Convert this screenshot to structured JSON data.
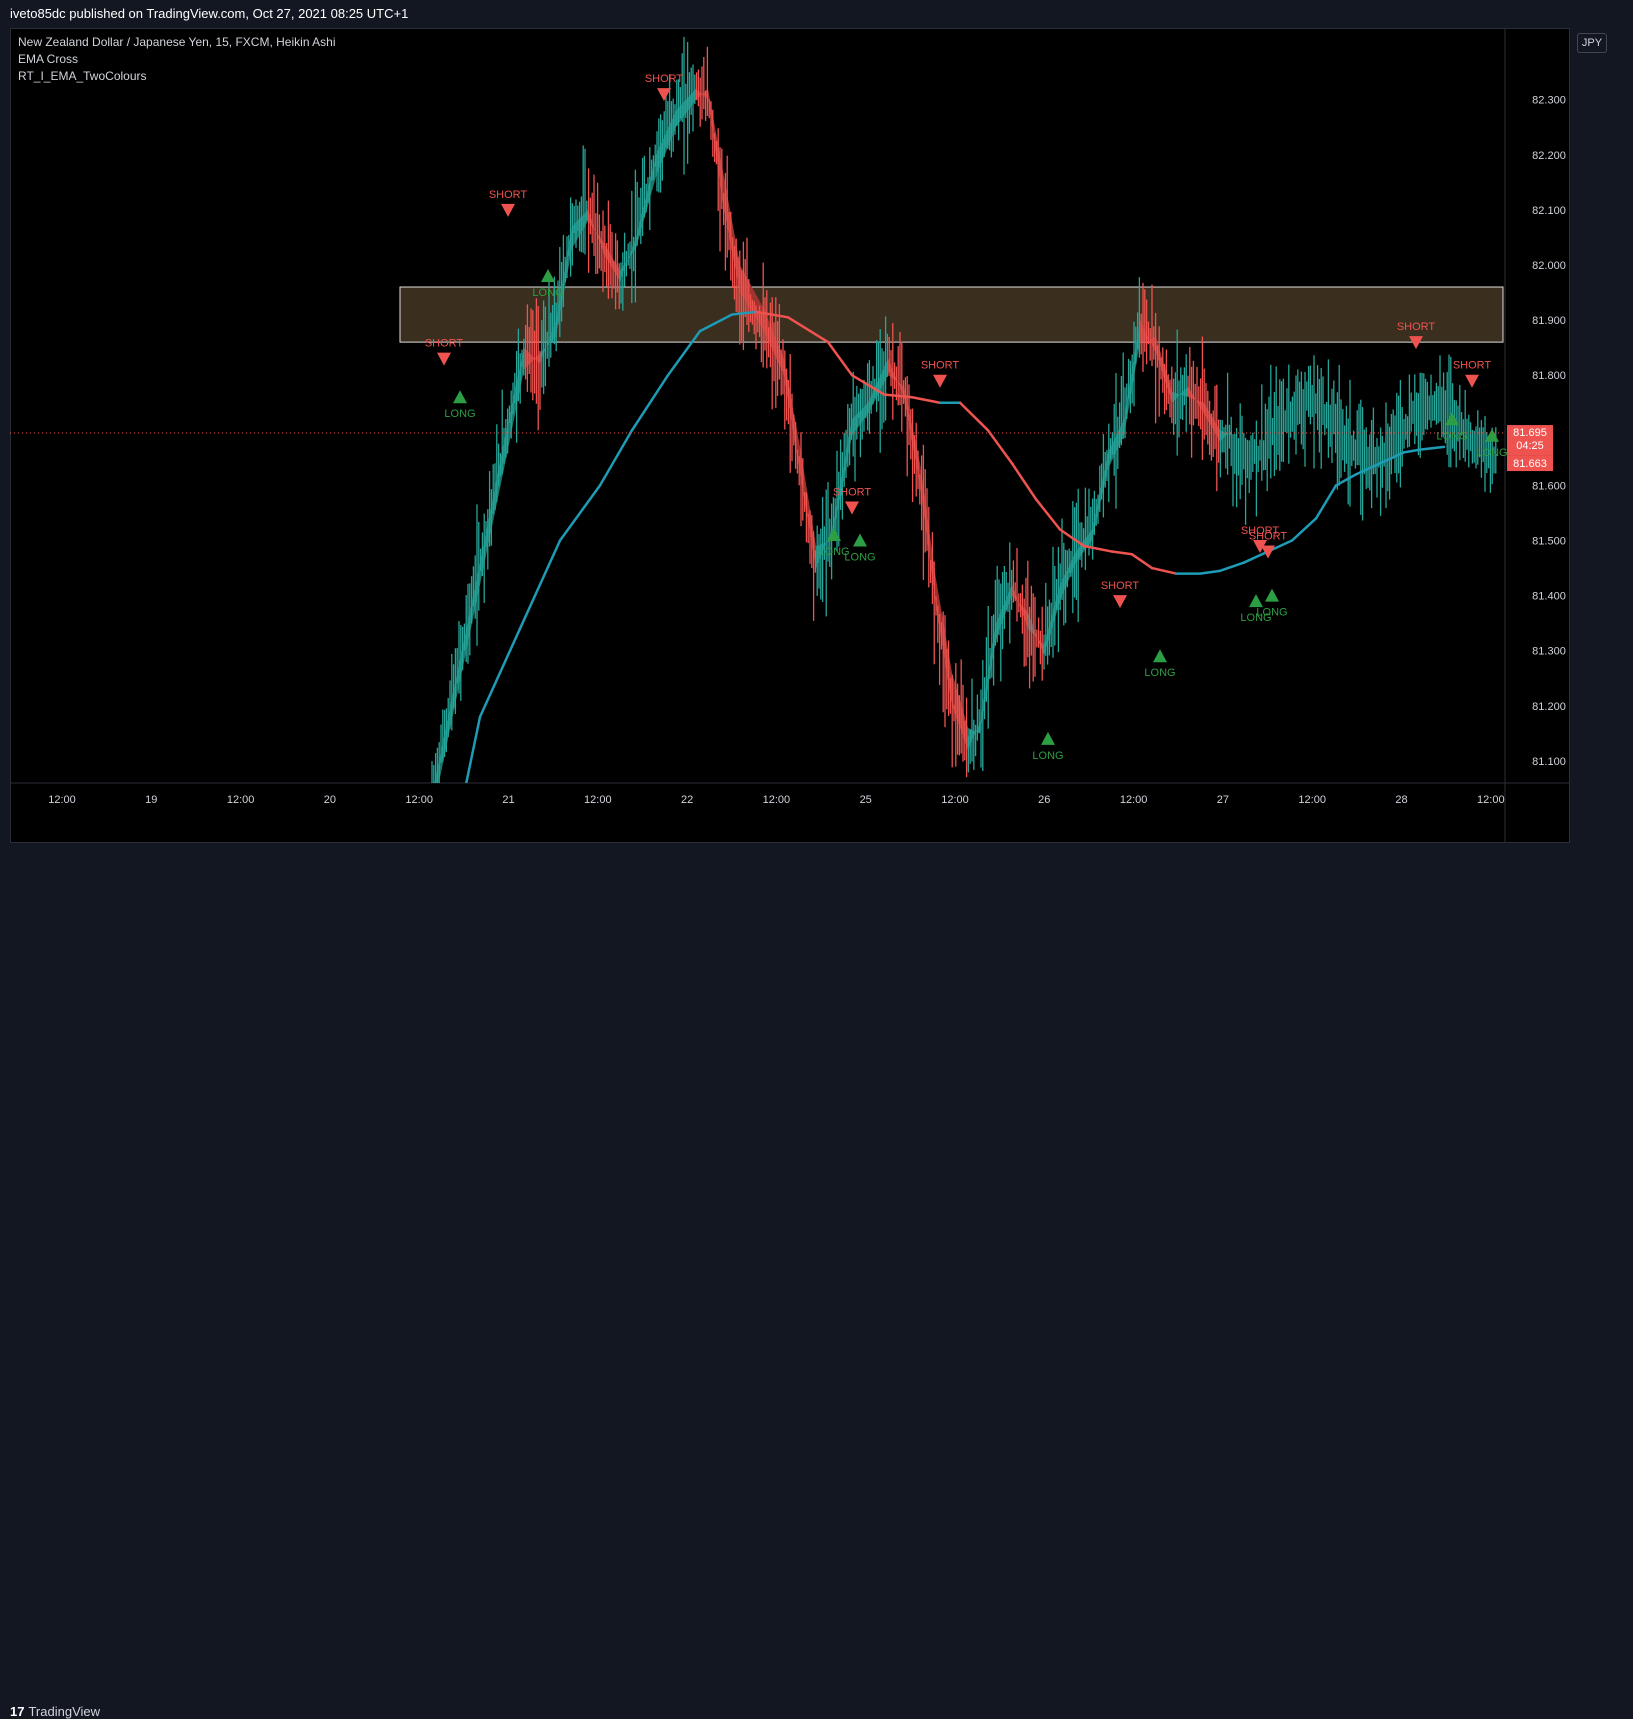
{
  "header": {
    "published": "iveto85dc published on TradingView.com, Oct 27, 2021 08:25 UTC+1"
  },
  "legend": {
    "symbol": "New Zealand Dollar / Japanese Yen, 15, FXCM, Heikin Ashi",
    "indicator1": "EMA Cross",
    "indicator2": "RT_I_EMA_TwoColours"
  },
  "currency": "JPY",
  "footer": {
    "brand": "TradingView"
  },
  "colors": {
    "background": "#000000",
    "bull": "#26a69a",
    "bear": "#ef5350",
    "ribbon_bull": "#1b7d72",
    "ribbon_bear": "#a8342f",
    "ema_bull": "#1e9bb5",
    "ema_bear": "#ef5350",
    "zone_fill": "#3a2e1f",
    "zone_border": "#e0e0e0",
    "long": "#2e9e44",
    "short": "#ef5350",
    "price_label": "#ef5350",
    "axis_text": "#d1d4dc"
  },
  "chart_data": {
    "type": "candlestick",
    "y_ticks": [
      "82.300",
      "82.200",
      "82.100",
      "82.000",
      "81.900",
      "81.800",
      "81.600",
      "81.500",
      "81.400",
      "81.300",
      "81.200",
      "81.100"
    ],
    "y_tick_values": [
      82.3,
      82.2,
      82.1,
      82.0,
      81.9,
      81.8,
      81.6,
      81.5,
      81.4,
      81.3,
      81.2,
      81.1
    ],
    "x_ticks": [
      "12:00",
      "19",
      "12:00",
      "20",
      "12:00",
      "21",
      "12:00",
      "22",
      "12:00",
      "25",
      "12:00",
      "26",
      "12:00",
      "27",
      "12:00",
      "28",
      "12:00"
    ],
    "ylim": [
      81.06,
      82.43
    ],
    "current_price": {
      "label": "81.695",
      "countdown": "04:25",
      "value": 81.695
    },
    "ema_price": {
      "label": "81.663",
      "value": 81.663
    },
    "zone": {
      "low": 81.86,
      "high": 81.96,
      "x_start": 9.5
    },
    "slow_ema": [
      {
        "x": 10.7,
        "y": 80.9
      },
      {
        "x": 11.5,
        "y": 81.18
      },
      {
        "x": 12.5,
        "y": 81.34
      },
      {
        "x": 13.5,
        "y": 81.5
      },
      {
        "x": 14.5,
        "y": 81.6
      },
      {
        "x": 15.3,
        "y": 81.7
      },
      {
        "x": 16.2,
        "y": 81.8
      },
      {
        "x": 17.0,
        "y": 81.88
      },
      {
        "x": 17.8,
        "y": 81.91
      },
      {
        "x": 18.4,
        "y": 81.915
      },
      {
        "x": 19.2,
        "y": 81.905
      },
      {
        "x": 20.2,
        "y": 81.86
      },
      {
        "x": 20.8,
        "y": 81.8
      },
      {
        "x": 21.6,
        "y": 81.765
      },
      {
        "x": 22.3,
        "y": 81.76
      },
      {
        "x": 23.0,
        "y": 81.75
      },
      {
        "x": 23.5,
        "y": 81.75
      },
      {
        "x": 24.2,
        "y": 81.7
      },
      {
        "x": 24.8,
        "y": 81.64
      },
      {
        "x": 25.4,
        "y": 81.575
      },
      {
        "x": 26.0,
        "y": 81.52
      },
      {
        "x": 26.6,
        "y": 81.49
      },
      {
        "x": 27.3,
        "y": 81.48
      },
      {
        "x": 27.8,
        "y": 81.475
      },
      {
        "x": 28.3,
        "y": 81.45
      },
      {
        "x": 28.9,
        "y": 81.44
      },
      {
        "x": 29.5,
        "y": 81.44
      },
      {
        "x": 30.0,
        "y": 81.445
      },
      {
        "x": 30.6,
        "y": 81.46
      },
      {
        "x": 31.2,
        "y": 81.48
      },
      {
        "x": 31.8,
        "y": 81.5
      },
      {
        "x": 32.4,
        "y": 81.54
      },
      {
        "x": 32.9,
        "y": 81.6
      },
      {
        "x": 33.4,
        "y": 81.62
      },
      {
        "x": 34.0,
        "y": 81.64
      },
      {
        "x": 34.6,
        "y": 81.66
      },
      {
        "x": 35.0,
        "y": 81.665
      },
      {
        "x": 35.6,
        "y": 81.67
      }
    ],
    "ribbon": [
      {
        "x": 10.3,
        "y": 81.04,
        "w": 0.04
      },
      {
        "x": 10.9,
        "y": 81.25,
        "w": 0.04
      },
      {
        "x": 11.5,
        "y": 81.46,
        "w": 0.04
      },
      {
        "x": 12.1,
        "y": 81.68,
        "w": 0.05
      },
      {
        "x": 12.6,
        "y": 81.85,
        "w": 0.04
      },
      {
        "x": 13.0,
        "y": 81.82,
        "w": -0.02
      },
      {
        "x": 13.4,
        "y": 81.9,
        "w": 0.03
      },
      {
        "x": 13.8,
        "y": 82.07,
        "w": 0.04
      },
      {
        "x": 14.2,
        "y": 82.1,
        "w": 0.02
      },
      {
        "x": 14.6,
        "y": 82.02,
        "w": -0.02
      },
      {
        "x": 15.0,
        "y": 81.97,
        "w": -0.02
      },
      {
        "x": 15.4,
        "y": 82.05,
        "w": 0.02
      },
      {
        "x": 15.9,
        "y": 82.2,
        "w": 0.04
      },
      {
        "x": 16.4,
        "y": 82.28,
        "w": 0.03
      },
      {
        "x": 16.9,
        "y": 82.32,
        "w": 0.02
      },
      {
        "x": 17.2,
        "y": 82.3,
        "w": -0.02
      },
      {
        "x": 17.6,
        "y": 82.1,
        "w": -0.06
      },
      {
        "x": 18.0,
        "y": 81.95,
        "w": -0.05
      },
      {
        "x": 18.6,
        "y": 81.88,
        "w": -0.04
      },
      {
        "x": 19.1,
        "y": 81.8,
        "w": -0.03
      },
      {
        "x": 19.5,
        "y": 81.62,
        "w": -0.05
      },
      {
        "x": 19.9,
        "y": 81.45,
        "w": -0.04
      },
      {
        "x": 20.3,
        "y": 81.52,
        "w": 0.02
      },
      {
        "x": 20.8,
        "y": 81.72,
        "w": 0.03
      },
      {
        "x": 21.2,
        "y": 81.75,
        "w": 0.02
      },
      {
        "x": 21.7,
        "y": 81.83,
        "w": 0.03
      },
      {
        "x": 22.1,
        "y": 81.76,
        "w": -0.02
      },
      {
        "x": 22.5,
        "y": 81.6,
        "w": -0.04
      },
      {
        "x": 22.9,
        "y": 81.38,
        "w": -0.05
      },
      {
        "x": 23.3,
        "y": 81.2,
        "w": -0.06
      },
      {
        "x": 23.7,
        "y": 81.12,
        "w": -0.04
      },
      {
        "x": 24.0,
        "y": 81.17,
        "w": 0.02
      },
      {
        "x": 24.4,
        "y": 81.35,
        "w": 0.03
      },
      {
        "x": 24.8,
        "y": 81.42,
        "w": 0.02
      },
      {
        "x": 25.2,
        "y": 81.34,
        "w": -0.03
      },
      {
        "x": 25.6,
        "y": 81.31,
        "w": 0.02
      },
      {
        "x": 26.0,
        "y": 81.42,
        "w": 0.03
      },
      {
        "x": 26.4,
        "y": 81.48,
        "w": 0.02
      },
      {
        "x": 26.8,
        "y": 81.52,
        "w": 0.02
      },
      {
        "x": 27.2,
        "y": 81.66,
        "w": 0.03
      },
      {
        "x": 27.6,
        "y": 81.72,
        "w": 0.03
      },
      {
        "x": 28.0,
        "y": 81.9,
        "w": 0.04
      },
      {
        "x": 28.4,
        "y": 81.84,
        "w": -0.03
      },
      {
        "x": 28.8,
        "y": 81.75,
        "w": -0.02
      },
      {
        "x": 29.2,
        "y": 81.78,
        "w": 0.02
      },
      {
        "x": 29.6,
        "y": 81.73,
        "w": -0.02
      },
      {
        "x": 30.0,
        "y": 81.68,
        "w": -0.02
      },
      {
        "x": 30.3,
        "y": 81.7,
        "w": 0.01
      }
    ],
    "signals": [
      {
        "type": "SHORT",
        "x": 10.6,
        "y": 81.83
      },
      {
        "type": "LONG",
        "x": 11.0,
        "y": 81.76
      },
      {
        "type": "SHORT",
        "x": 12.2,
        "y": 82.1
      },
      {
        "type": "LONG",
        "x": 13.2,
        "y": 81.98
      },
      {
        "type": "SHORT",
        "x": 16.1,
        "y": 82.31
      },
      {
        "type": "SHORT",
        "x": 20.8,
        "y": 81.56
      },
      {
        "type": "LONG",
        "x": 20.35,
        "y": 81.51
      },
      {
        "type": "LONG",
        "x": 21.0,
        "y": 81.5
      },
      {
        "type": "SHORT",
        "x": 23.0,
        "y": 81.79
      },
      {
        "type": "LONG",
        "x": 25.7,
        "y": 81.14
      },
      {
        "type": "SHORT",
        "x": 27.5,
        "y": 81.39
      },
      {
        "type": "LONG",
        "x": 28.5,
        "y": 81.29
      },
      {
        "type": "SHORT",
        "x": 31.0,
        "y": 81.49
      },
      {
        "type": "SHORT",
        "x": 31.2,
        "y": 81.48
      },
      {
        "type": "LONG",
        "x": 30.9,
        "y": 81.39
      },
      {
        "type": "LONG",
        "x": 31.3,
        "y": 81.4
      },
      {
        "type": "SHORT",
        "x": 34.9,
        "y": 81.86
      },
      {
        "type": "LONG",
        "x": 35.8,
        "y": 81.72
      },
      {
        "type": "SHORT",
        "x": 36.3,
        "y": 81.79
      },
      {
        "type": "LONG",
        "x": 36.8,
        "y": 81.69
      }
    ]
  }
}
